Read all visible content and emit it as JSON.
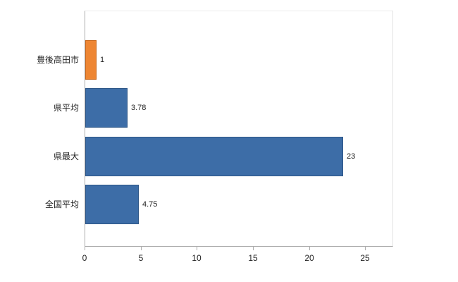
{
  "chart_data": {
    "type": "bar",
    "orientation": "horizontal",
    "categories": [
      "豊後高田市",
      "県平均",
      "県最大",
      "全国平均"
    ],
    "values": [
      1,
      3.78,
      23,
      4.75
    ],
    "value_labels": [
      "1",
      "3.78",
      "23",
      "4.75"
    ],
    "bar_colors": [
      "#ee8633",
      "#3d6da7",
      "#3d6da7",
      "#3d6da7"
    ],
    "bar_border_colors": [
      "#c9681c",
      "#2d5687",
      "#2d5687",
      "#2d5687"
    ],
    "xlim": [
      0,
      27.5
    ],
    "x_ticks": [
      0,
      5,
      10,
      15,
      20,
      25
    ],
    "grid": false,
    "legend": false,
    "background": "#ffffff",
    "axis_color": "#ababab",
    "text_color": "#222222"
  }
}
